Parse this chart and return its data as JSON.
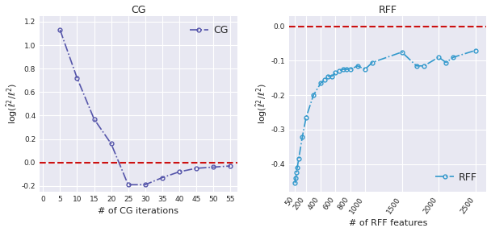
{
  "cg_x": [
    5,
    10,
    15,
    20,
    25,
    30,
    35,
    40,
    45,
    50,
    55
  ],
  "cg_y": [
    1.13,
    0.72,
    0.37,
    0.16,
    -0.19,
    -0.19,
    -0.13,
    -0.08,
    -0.05,
    -0.04,
    -0.03
  ],
  "cg_xticks": [
    0,
    5,
    10,
    15,
    20,
    25,
    30,
    35,
    40,
    45,
    50,
    55
  ],
  "cg_ylim": [
    -0.25,
    1.25
  ],
  "cg_yticks": [
    -0.2,
    0.0,
    0.2,
    0.4,
    0.6,
    0.8,
    1.0,
    1.2
  ],
  "cg_title": "CG",
  "cg_xlabel": "# of CG iterations",
  "cg_ylabel": "log($\\hat{\\ell}^2/\\ell^2$)",
  "cg_color": "#5555aa",
  "cg_legend": "CG",
  "rff_x": [
    50,
    60,
    70,
    80,
    100,
    150,
    200,
    300,
    400,
    450,
    500,
    550,
    600,
    650,
    700,
    750,
    800,
    900,
    1000,
    1100,
    1500,
    1700,
    1800,
    2000,
    2100,
    2200,
    2500
  ],
  "rff_y": [
    -0.455,
    -0.44,
    -0.425,
    -0.41,
    -0.385,
    -0.32,
    -0.265,
    -0.2,
    -0.165,
    -0.155,
    -0.145,
    -0.145,
    -0.135,
    -0.13,
    -0.125,
    -0.125,
    -0.125,
    -0.115,
    -0.125,
    -0.105,
    -0.075,
    -0.115,
    -0.115,
    -0.09,
    -0.105,
    -0.09,
    -0.07
  ],
  "rff_xticks": [
    50,
    200,
    400,
    600,
    800,
    1000,
    1500,
    2000,
    2500
  ],
  "rff_ylim": [
    -0.48,
    0.03
  ],
  "rff_yticks": [
    0.0,
    -0.1,
    -0.2,
    -0.3,
    -0.4
  ],
  "rff_title": "RFF",
  "rff_xlabel": "# of RFF features",
  "rff_ylabel": "log($\\hat{\\ell}^2/\\ell^2$)",
  "rff_color": "#3399cc",
  "rff_legend": "RFF",
  "bg_color": "#e8e8f2",
  "red_dashed_color": "#cc1111",
  "figure_bg": "#ffffff",
  "title_fontsize": 9,
  "label_fontsize": 8,
  "tick_fontsize": 6.5,
  "legend_fontsize": 9
}
